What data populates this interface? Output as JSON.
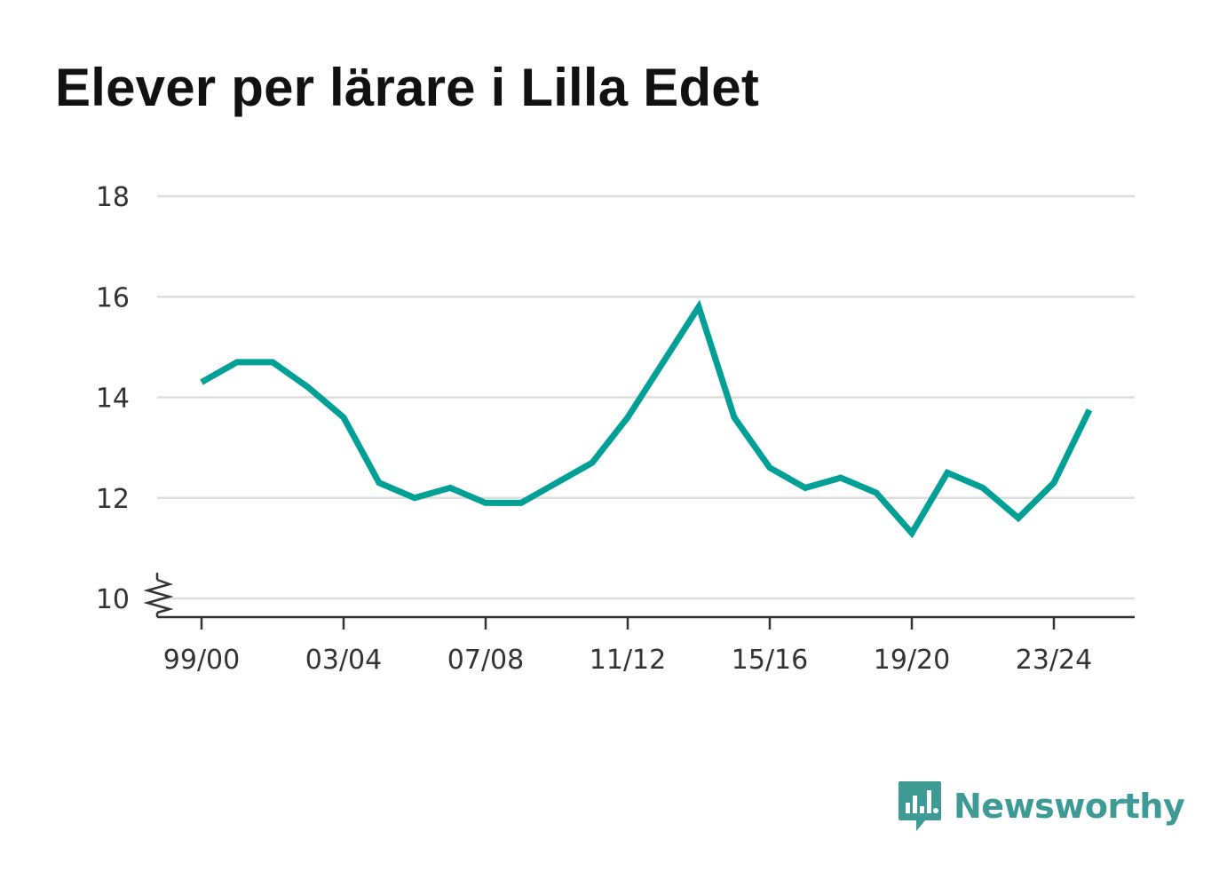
{
  "title": "Elever per lärare i Lilla Edet",
  "brand": {
    "name": "Newsworthy",
    "logo_icon": "newsworthy-chart-bubble-icon",
    "color": "#3d9a94"
  },
  "chart_data": {
    "type": "line",
    "title": "Elever per lärare i Lilla Edet",
    "xlabel": "",
    "ylabel": "",
    "line_color": "#00a096",
    "grid": true,
    "ylim": [
      10,
      18
    ],
    "y_axis_break": true,
    "y_ticks": [
      10,
      12,
      14,
      16,
      18
    ],
    "x_tick_labels": [
      "99/00",
      "03/04",
      "07/08",
      "11/12",
      "15/16",
      "19/20",
      "23/24"
    ],
    "categories": [
      "99/00",
      "00/01",
      "01/02",
      "02/03",
      "03/04",
      "04/05",
      "05/06",
      "06/07",
      "07/08",
      "08/09",
      "09/10",
      "10/11",
      "11/12",
      "12/13",
      "13/14",
      "14/15",
      "15/16",
      "16/17",
      "17/18",
      "18/19",
      "19/20",
      "20/21",
      "21/22",
      "22/23",
      "23/24",
      "24/25"
    ],
    "values": [
      14.3,
      14.7,
      14.7,
      14.2,
      13.6,
      12.3,
      12.0,
      12.2,
      11.9,
      11.9,
      12.3,
      12.7,
      13.6,
      14.7,
      15.8,
      13.6,
      12.6,
      12.2,
      12.4,
      12.1,
      11.3,
      12.5,
      12.2,
      11.6,
      12.3,
      13.75
    ]
  }
}
